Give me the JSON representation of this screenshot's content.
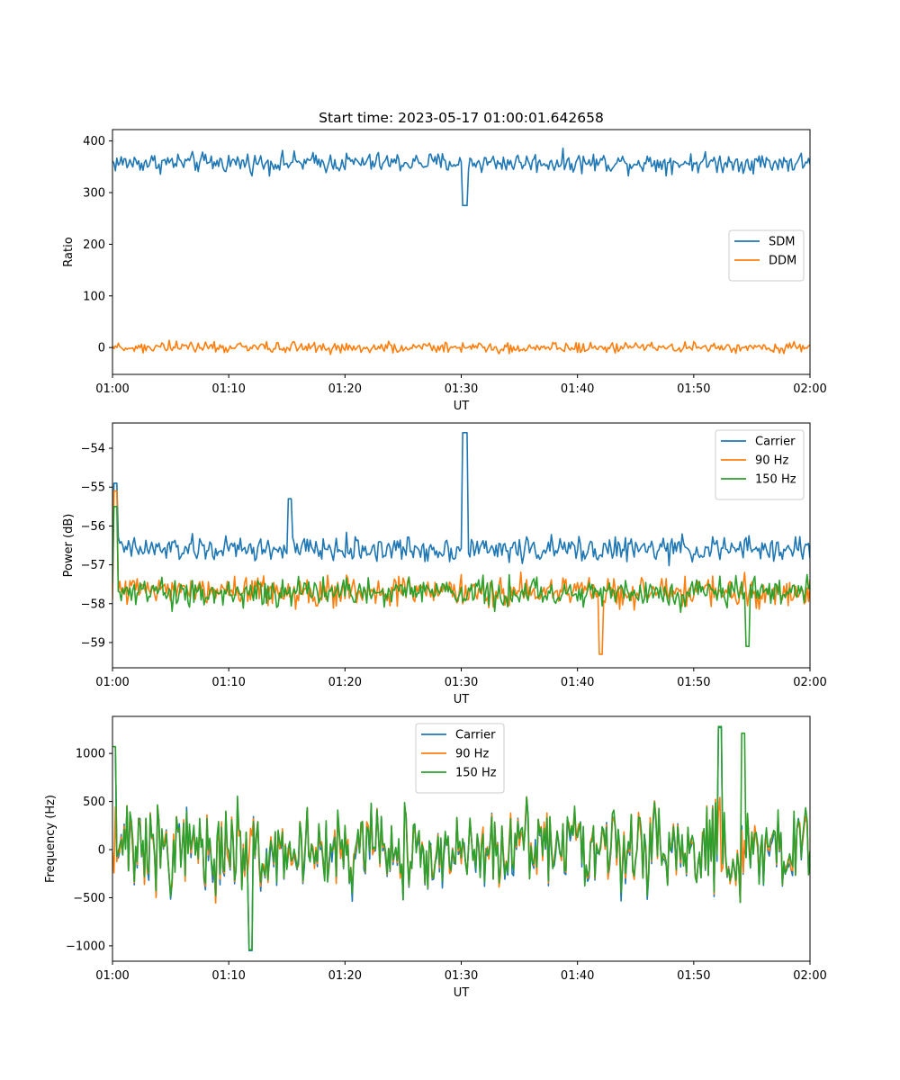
{
  "title": "Start time: 2023-05-17 01:00:01.642658",
  "colors": {
    "blue": "#1f77b4",
    "orange": "#ff7f0e",
    "green": "#2ca02c"
  },
  "chart_data": [
    {
      "type": "line",
      "title": "Start time: 2023-05-17 01:00:01.642658",
      "xlabel": "UT",
      "ylabel": "Ratio",
      "xlim": [
        "01:00",
        "02:00"
      ],
      "xticks": [
        "01:00",
        "01:10",
        "01:20",
        "01:30",
        "01:40",
        "01:50",
        "02:00"
      ],
      "ylim": [
        -52,
        422
      ],
      "yticks": [
        0,
        100,
        200,
        300,
        400
      ],
      "legend_position": "center-right",
      "noisy": true,
      "series": [
        {
          "name": "SDM",
          "color": "#1f77b4",
          "mean": 358,
          "amplitude": 18,
          "features": [
            {
              "t": 30.3,
              "value": 275
            }
          ]
        },
        {
          "name": "DDM",
          "color": "#ff7f0e",
          "mean": 0,
          "amplitude": 10,
          "features": []
        }
      ]
    },
    {
      "type": "line",
      "xlabel": "UT",
      "ylabel": "Power (dB)",
      "xlim": [
        "01:00",
        "02:00"
      ],
      "xticks": [
        "01:00",
        "01:10",
        "01:20",
        "01:30",
        "01:40",
        "01:50",
        "02:00"
      ],
      "ylim": [
        -59.65,
        -53.35
      ],
      "yticks": [
        -59,
        -58,
        -57,
        -56,
        -55,
        -54
      ],
      "legend_position": "top-right",
      "noisy": true,
      "series": [
        {
          "name": "Carrier",
          "color": "#1f77b4",
          "mean": -56.6,
          "amplitude": 0.3,
          "features": [
            {
              "t": 0.3,
              "value": -54.9
            },
            {
              "t": 15.3,
              "value": -55.3
            },
            {
              "t": 30.3,
              "value": -53.6
            }
          ]
        },
        {
          "name": "90 Hz",
          "color": "#ff7f0e",
          "mean": -57.7,
          "amplitude": 0.35,
          "features": [
            {
              "t": 0.3,
              "value": -55.1
            },
            {
              "t": 42.0,
              "value": -59.3
            }
          ]
        },
        {
          "name": "150 Hz",
          "color": "#2ca02c",
          "mean": -57.7,
          "amplitude": 0.35,
          "features": [
            {
              "t": 0.2,
              "value": -55.5
            },
            {
              "t": 54.6,
              "value": -59.1
            }
          ]
        }
      ]
    },
    {
      "type": "line",
      "xlabel": "UT",
      "ylabel": "Frequency (Hz)",
      "xlim": [
        "01:00",
        "02:00"
      ],
      "xticks": [
        "01:00",
        "01:10",
        "01:20",
        "01:30",
        "01:40",
        "01:50",
        "02:00"
      ],
      "ylim": [
        -1160,
        1385
      ],
      "yticks": [
        -1000,
        -500,
        0,
        500,
        1000
      ],
      "legend_position": "top-center",
      "noisy": true,
      "series": [
        {
          "name": "Carrier",
          "color": "#1f77b4",
          "mean": 0,
          "amplitude": 400,
          "features": [
            {
              "t": 0.1,
              "value": 1070
            },
            {
              "t": 11.9,
              "value": -1050
            },
            {
              "t": 52.3,
              "value": 1270
            }
          ]
        },
        {
          "name": "90 Hz",
          "color": "#ff7f0e",
          "mean": 0,
          "amplitude": 400,
          "features": []
        },
        {
          "name": "150 Hz",
          "color": "#2ca02c",
          "mean": 0,
          "amplitude": 400,
          "features": [
            {
              "t": 0.1,
              "value": 1070
            },
            {
              "t": 11.9,
              "value": -1040
            },
            {
              "t": 52.3,
              "value": 1280
            },
            {
              "t": 54.3,
              "value": 1210
            }
          ]
        }
      ]
    }
  ]
}
